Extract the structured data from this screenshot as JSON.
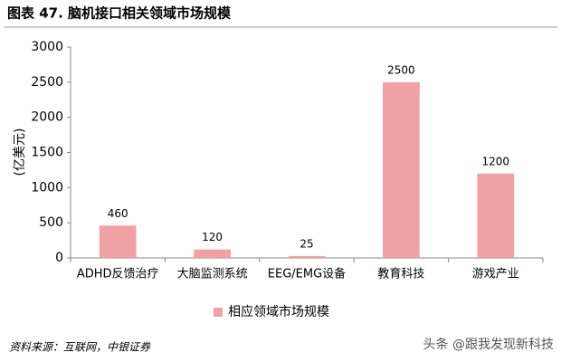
{
  "chart_data": {
    "type": "bar",
    "title": "图表 47. 脑机接口相关领域市场规模",
    "y_label": "(亿美元)",
    "categories": [
      "ADHD反馈治疗",
      "大脑监测系统",
      "EEG/EMG设备",
      "教育科技",
      "游戏产业"
    ],
    "series": [
      {
        "name": "相应领域市场规模",
        "color": "#f0a1a3",
        "values": [
          460,
          120,
          25,
          2500,
          1200
        ]
      }
    ],
    "ylim": [
      0,
      3000
    ],
    "yticks": [
      0,
      500,
      1000,
      1500,
      2000,
      2500,
      3000
    ],
    "grid": false,
    "legend": "bottom",
    "source": "资料来源：互联网，中银证券",
    "watermark": "头条 @跟我发现新科技"
  }
}
